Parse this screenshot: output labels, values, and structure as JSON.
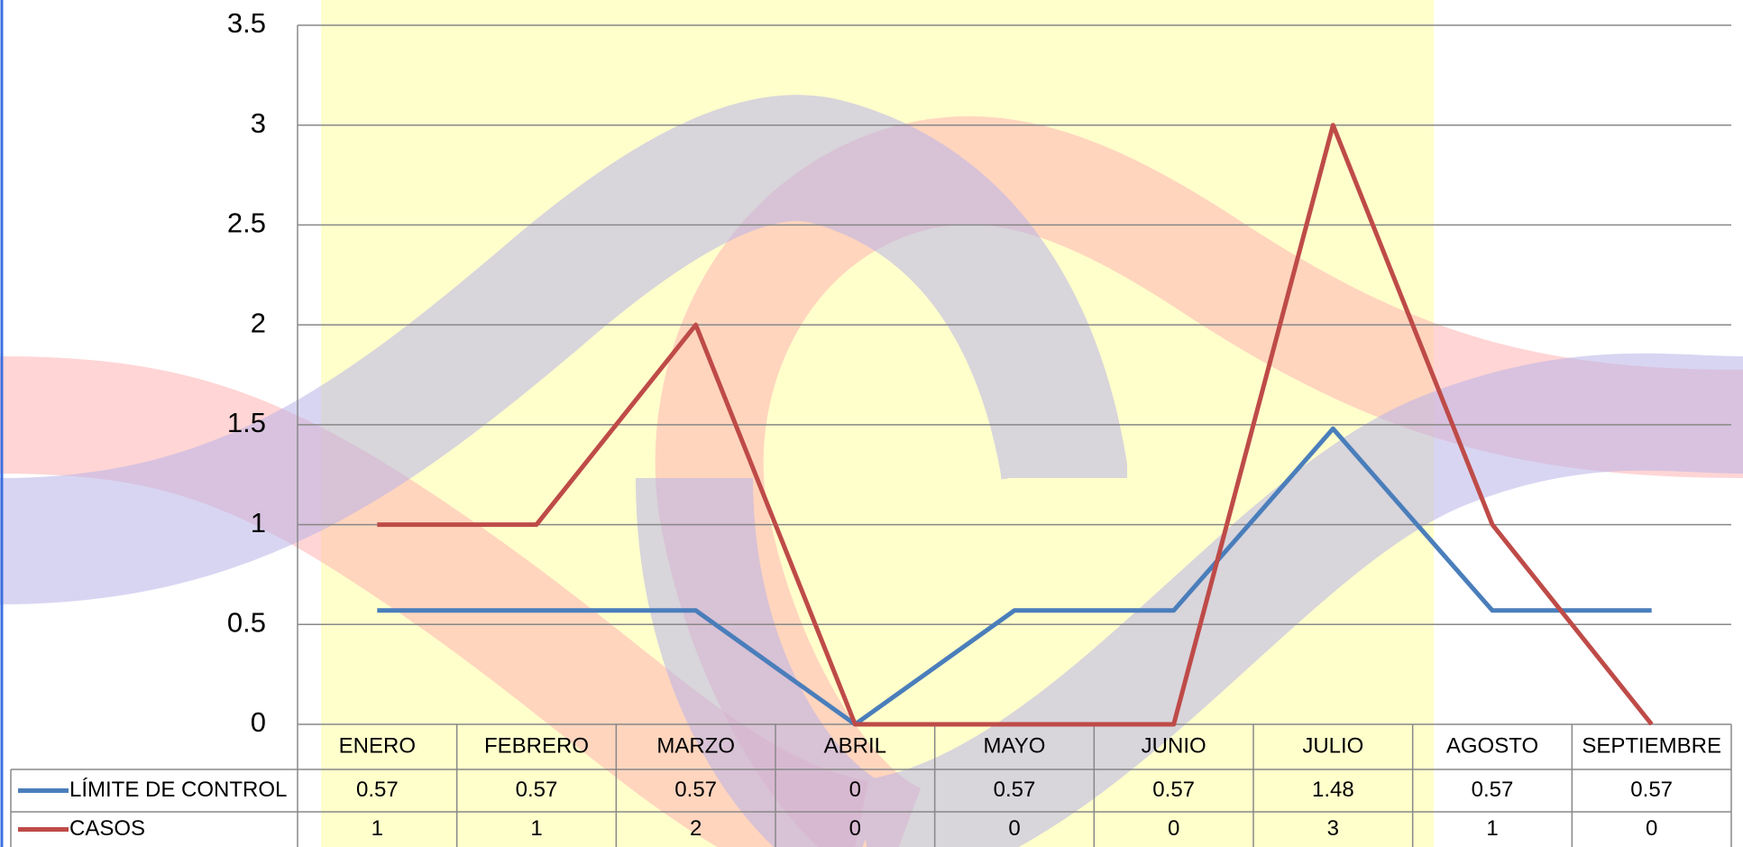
{
  "chart_data": {
    "type": "line",
    "categories": [
      "ENERO",
      "FEBRERO",
      "MARZO",
      "ABRIL",
      "MAYO",
      "JUNIO",
      "JULIO",
      "AGOSTO",
      "SEPTIEMBRE"
    ],
    "series": [
      {
        "name": "LÍMITE DE CONTROL",
        "color": "#4a7ebb",
        "values": [
          0.57,
          0.57,
          0.57,
          0,
          0.57,
          0.57,
          1.48,
          0.57,
          0.57
        ]
      },
      {
        "name": "CASOS",
        "color": "#be4b48",
        "values": [
          1,
          1,
          2,
          0,
          0,
          0,
          3,
          1,
          0
        ]
      }
    ],
    "ylim": [
      0,
      3.5
    ],
    "yticks": [
      0,
      0.5,
      1,
      1.5,
      2,
      2.5,
      3,
      3.5
    ],
    "grid": true
  }
}
